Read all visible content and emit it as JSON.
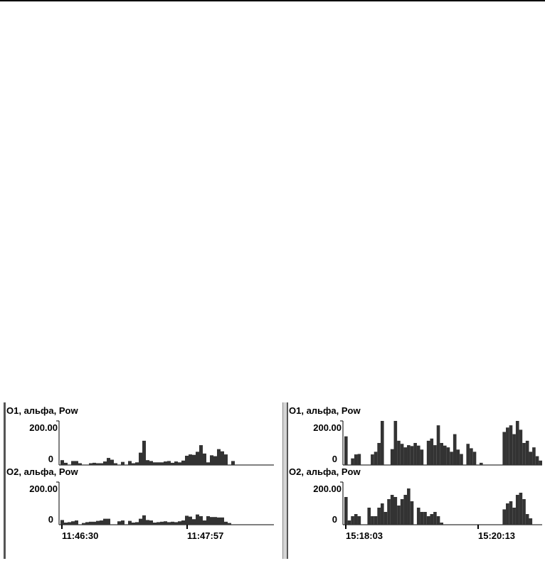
{
  "colors": {
    "bar": "#333333",
    "axis": "#000000",
    "background": "#ffffff"
  },
  "chart_data": [
    {
      "type": "bar",
      "panel": "left",
      "channel": "O1",
      "title": "O1, альфа, Pow",
      "y_tick_labels": [
        "200.00",
        "0"
      ],
      "ylim": [
        0,
        200
      ],
      "x_tick_labels": [
        "11:46:30",
        "11:47:57"
      ],
      "values": [
        22,
        10,
        0,
        18,
        18,
        8,
        0,
        0,
        8,
        10,
        8,
        8,
        16,
        32,
        24,
        8,
        0,
        14,
        0,
        18,
        8,
        12,
        56,
        110,
        22,
        18,
        12,
        12,
        12,
        16,
        18,
        10,
        16,
        12,
        20,
        42,
        48,
        46,
        60,
        90,
        52,
        12,
        44,
        40,
        72,
        62,
        48,
        0,
        18,
        0,
        0,
        0,
        0,
        0,
        0,
        0,
        0,
        0,
        0,
        0
      ]
    },
    {
      "type": "bar",
      "panel": "left",
      "channel": "O2",
      "title": "O2, альфа, Pow",
      "y_tick_labels": [
        "200.00",
        "0"
      ],
      "ylim": [
        0,
        200
      ],
      "x_tick_labels": [
        "11:46:30",
        "11:47:57"
      ],
      "values": [
        22,
        10,
        12,
        16,
        20,
        0,
        8,
        12,
        14,
        14,
        18,
        20,
        28,
        28,
        0,
        0,
        16,
        20,
        0,
        18,
        10,
        12,
        28,
        44,
        22,
        20,
        10,
        12,
        14,
        16,
        12,
        14,
        12,
        16,
        20,
        42,
        38,
        26,
        48,
        40,
        20,
        40,
        36,
        36,
        34,
        34,
        14,
        8,
        0,
        0,
        0,
        0,
        0,
        0,
        0,
        0,
        0,
        0,
        0,
        0
      ]
    },
    {
      "type": "bar",
      "panel": "right",
      "channel": "O1",
      "title": "O1, альфа, Pow",
      "y_tick_labels": [
        "200.00",
        "0"
      ],
      "ylim": [
        0,
        200
      ],
      "x_tick_labels": [
        "15:18:03",
        "15:20:13"
      ],
      "values": [
        130,
        0,
        30,
        48,
        50,
        0,
        0,
        0,
        48,
        60,
        100,
        200,
        0,
        0,
        72,
        200,
        110,
        96,
        80,
        90,
        86,
        100,
        88,
        70,
        0,
        110,
        120,
        90,
        180,
        100,
        88,
        80,
        60,
        140,
        70,
        50,
        0,
        96,
        76,
        60,
        0,
        10,
        0,
        0,
        0,
        0,
        0,
        0,
        150,
        170,
        180,
        140,
        200,
        160,
        100,
        110,
        60,
        80,
        40,
        20
      ]
    },
    {
      "type": "bar",
      "panel": "right",
      "channel": "O2",
      "title": "O2, альфа, Pow",
      "y_tick_labels": [
        "200.00",
        "0"
      ],
      "ylim": [
        0,
        200
      ],
      "x_tick_labels": [
        "15:18:03",
        "15:20:13"
      ],
      "values": [
        130,
        20,
        40,
        50,
        40,
        0,
        0,
        80,
        40,
        40,
        80,
        100,
        60,
        120,
        140,
        130,
        90,
        120,
        140,
        170,
        110,
        0,
        80,
        60,
        60,
        40,
        50,
        60,
        40,
        10,
        0,
        0,
        0,
        0,
        0,
        0,
        0,
        0,
        0,
        0,
        0,
        0,
        0,
        0,
        0,
        0,
        0,
        0,
        72,
        100,
        110,
        80,
        140,
        150,
        120,
        50,
        30,
        0,
        0,
        0
      ]
    }
  ]
}
